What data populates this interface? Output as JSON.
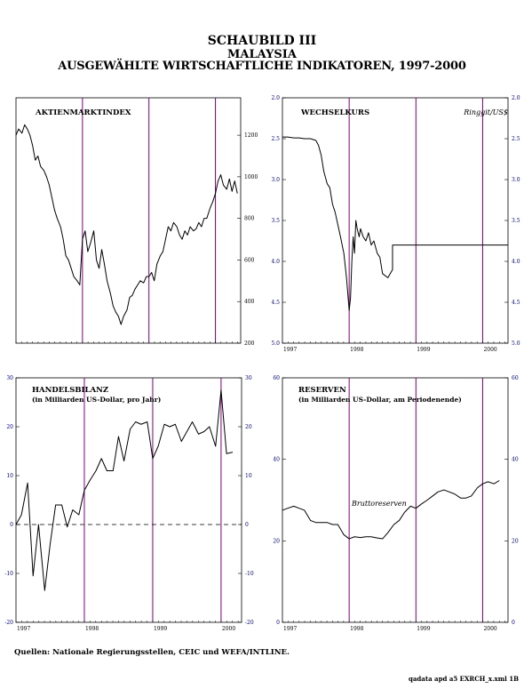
{
  "heading": {
    "line1": "SCHAUBILD III",
    "line2": "MALAYSIA",
    "line3": "AUSGEWÄHLTE WIRTSCHAFTLICHE INDIKATOREN, 1997-2000"
  },
  "colors": {
    "line": "#000000",
    "year_marker": "#800080",
    "axis_numbers": "#000080",
    "frame": "#000000"
  },
  "chart_data": [
    {
      "type": "line",
      "title": "AKTIENMARKTINDEX",
      "subtitle": "",
      "year_markers": [
        1998,
        1999,
        2000
      ],
      "xlim": [
        1997,
        2000.38
      ],
      "ylim": [
        200,
        1380
      ],
      "right_ticks": [
        200,
        400,
        600,
        800,
        1000,
        1200
      ],
      "left_ticks": [],
      "x_ticks": [],
      "series": [
        {
          "name": "",
          "x": [
            1997.0,
            1997.04,
            1997.09,
            1997.13,
            1997.17,
            1997.21,
            1997.25,
            1997.29,
            1997.33,
            1997.37,
            1997.42,
            1997.46,
            1997.5,
            1997.54,
            1997.58,
            1997.62,
            1997.67,
            1997.71,
            1997.75,
            1997.79,
            1997.83,
            1997.87,
            1997.92,
            1997.96,
            1998.0,
            1998.04,
            1998.08,
            1998.12,
            1998.17,
            1998.21,
            1998.25,
            1998.29,
            1998.33,
            1998.37,
            1998.42,
            1998.46,
            1998.5,
            1998.54,
            1998.58,
            1998.62,
            1998.67,
            1998.71,
            1998.75,
            1998.79,
            1998.83,
            1998.87,
            1998.92,
            1998.96,
            1999.0,
            1999.04,
            1999.08,
            1999.12,
            1999.17,
            1999.21,
            1999.25,
            1999.29,
            1999.33,
            1999.37,
            1999.42,
            1999.46,
            1999.5,
            1999.54,
            1999.58,
            1999.62,
            1999.67,
            1999.71,
            1999.75,
            1999.79,
            1999.83,
            1999.87,
            1999.92,
            1999.96,
            2000.0,
            2000.04,
            2000.08,
            2000.12,
            2000.17,
            2000.21,
            2000.25,
            2000.29,
            2000.33
          ],
          "y": [
            1200,
            1230,
            1210,
            1250,
            1230,
            1200,
            1150,
            1080,
            1100,
            1050,
            1030,
            1000,
            960,
            900,
            840,
            800,
            760,
            700,
            620,
            600,
            560,
            520,
            500,
            480,
            700,
            740,
            640,
            680,
            740,
            600,
            560,
            650,
            580,
            500,
            440,
            380,
            350,
            330,
            290,
            330,
            360,
            420,
            430,
            460,
            480,
            500,
            490,
            520,
            520,
            540,
            500,
            580,
            620,
            640,
            700,
            760,
            740,
            780,
            760,
            720,
            700,
            740,
            720,
            760,
            740,
            750,
            780,
            760,
            800,
            800,
            850,
            880,
            920,
            980,
            1010,
            960,
            940,
            990,
            930,
            980,
            920
          ]
        }
      ]
    },
    {
      "type": "line",
      "title": "WECHSELKURS",
      "subtitle": "",
      "unit": "Ringgit/US$",
      "inverted": true,
      "year_markers": [
        1998,
        1999,
        2000
      ],
      "xlim": [
        1997,
        2000.38
      ],
      "ylim": [
        2.0,
        5.0
      ],
      "left_ticks": [
        "2.0",
        "2.5",
        "3.0",
        "3.5",
        "4.0",
        "4.5",
        "5.0"
      ],
      "right_ticks": [
        "2.0",
        "2.5",
        "3.0",
        "3.5",
        "4.0",
        "4.5",
        "5.0"
      ],
      "x_ticks": [
        "1997",
        "1998",
        "1999",
        "2000"
      ],
      "series": [
        {
          "name": "",
          "x": [
            1997.0,
            1997.08,
            1997.17,
            1997.25,
            1997.33,
            1997.42,
            1997.5,
            1997.54,
            1997.58,
            1997.62,
            1997.67,
            1997.71,
            1997.75,
            1997.79,
            1997.83,
            1997.87,
            1997.92,
            1997.96,
            1998.0,
            1998.02,
            1998.04,
            1998.06,
            1998.08,
            1998.1,
            1998.12,
            1998.15,
            1998.17,
            1998.21,
            1998.25,
            1998.29,
            1998.33,
            1998.37,
            1998.42,
            1998.46,
            1998.5,
            1998.58,
            1998.65,
            1998.65,
            2000.38
          ],
          "y": [
            2.48,
            2.48,
            2.49,
            2.49,
            2.5,
            2.5,
            2.52,
            2.58,
            2.7,
            2.9,
            3.05,
            3.1,
            3.3,
            3.4,
            3.55,
            3.7,
            3.9,
            4.2,
            4.6,
            4.45,
            4.0,
            3.7,
            3.9,
            3.5,
            3.6,
            3.7,
            3.6,
            3.7,
            3.75,
            3.65,
            3.8,
            3.75,
            3.9,
            3.95,
            4.15,
            4.2,
            4.1,
            3.8,
            3.8
          ]
        }
      ]
    },
    {
      "type": "line",
      "title": "HANDELSBILANZ",
      "subtitle": "(in Milliarden US-Dollar, pro Jahr)",
      "zero_line": true,
      "year_markers": [
        1998,
        1999,
        2000
      ],
      "xlim": [
        1997,
        2000.3
      ],
      "ylim": [
        -20,
        30
      ],
      "left_ticks": [
        "-20",
        "-10",
        "0",
        "10",
        "20",
        "30"
      ],
      "right_ticks": [
        "-20",
        "-10",
        "0",
        "10",
        "20",
        "30"
      ],
      "x_ticks": [
        "1997",
        "1998",
        "1999",
        "2000"
      ],
      "series": [
        {
          "name": "",
          "x": [
            1997.0,
            1997.08,
            1997.17,
            1997.25,
            1997.33,
            1997.42,
            1997.5,
            1997.58,
            1997.67,
            1997.75,
            1997.83,
            1997.92,
            1998.0,
            1998.08,
            1998.17,
            1998.25,
            1998.33,
            1998.42,
            1998.5,
            1998.58,
            1998.67,
            1998.75,
            1998.83,
            1998.92,
            1999.0,
            1999.08,
            1999.17,
            1999.25,
            1999.33,
            1999.42,
            1999.5,
            1999.58,
            1999.67,
            1999.75,
            1999.83,
            1999.92,
            2000.0,
            2000.08,
            2000.17
          ],
          "y": [
            0,
            2,
            8.5,
            -10.5,
            0,
            -13.5,
            -4,
            4,
            4,
            -0.5,
            3,
            2,
            7,
            9,
            11,
            13.5,
            11,
            11,
            18,
            13,
            19.5,
            21,
            20.5,
            21,
            13.5,
            16,
            20.5,
            20,
            20.5,
            17,
            19,
            21,
            18.5,
            19,
            20,
            16,
            27.5,
            14.5,
            14.8
          ]
        }
      ]
    },
    {
      "type": "line",
      "title": "RESERVEN",
      "subtitle": "(in Milliarden US-Dollar, am Periodenende)",
      "annotation": "Bruttoreserven",
      "year_markers": [
        1998,
        1999,
        2000
      ],
      "xlim": [
        1997,
        2000.38
      ],
      "ylim": [
        0,
        60
      ],
      "left_ticks": [
        "0",
        "20",
        "40",
        "60"
      ],
      "right_ticks": [
        "0",
        "20",
        "40",
        "60"
      ],
      "x_ticks": [
        "1997",
        "1998",
        "1999",
        "2000"
      ],
      "series": [
        {
          "name": "",
          "x": [
            1997.0,
            1997.08,
            1997.17,
            1997.25,
            1997.33,
            1997.42,
            1997.5,
            1997.58,
            1997.67,
            1997.75,
            1997.83,
            1997.92,
            1998.0,
            1998.08,
            1998.17,
            1998.25,
            1998.33,
            1998.42,
            1998.5,
            1998.58,
            1998.67,
            1998.75,
            1998.83,
            1998.92,
            1999.0,
            1999.08,
            1999.17,
            1999.25,
            1999.33,
            1999.42,
            1999.5,
            1999.58,
            1999.67,
            1999.75,
            1999.83,
            1999.92,
            2000.0,
            2000.08,
            2000.17,
            2000.25
          ],
          "y": [
            27.5,
            28,
            28.5,
            28,
            27.5,
            25,
            24.5,
            24.5,
            24.5,
            24,
            24,
            21.5,
            20.5,
            21,
            20.8,
            21,
            21,
            20.7,
            20.5,
            22,
            24,
            25,
            27,
            28.5,
            28,
            29,
            30,
            31,
            32,
            32.5,
            32,
            31.5,
            30.5,
            30.5,
            31,
            33,
            34,
            34.5,
            34,
            34.8
          ]
        }
      ]
    }
  ],
  "footer": {
    "sources": "Quellen:  Nationale Regierungsstellen, CEIC und WEFA/INTLINE.",
    "code": "qadata apd a5 EXRCH_x.xml 1B"
  }
}
